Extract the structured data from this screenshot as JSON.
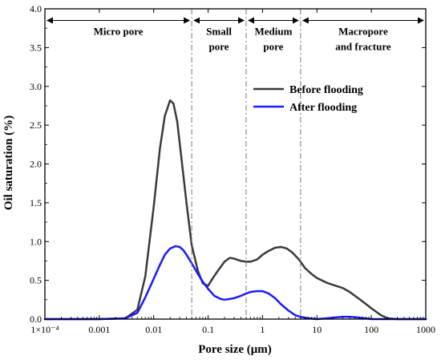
{
  "chart_data": {
    "type": "line",
    "xlabel": "Pore size (μm)",
    "ylabel": "Oil saturation (%)",
    "x_scale": "log",
    "xlim": [
      0.0001,
      1000
    ],
    "ylim": [
      0,
      4.0
    ],
    "x_ticks": [
      {
        "value": 0.0001,
        "label": "1×10⁻⁴"
      },
      {
        "value": 0.001,
        "label": "0.001"
      },
      {
        "value": 0.01,
        "label": "0.01"
      },
      {
        "value": 0.1,
        "label": "0.1"
      },
      {
        "value": 1,
        "label": "1"
      },
      {
        "value": 10,
        "label": "10"
      },
      {
        "value": 100,
        "label": "100"
      },
      {
        "value": 1000,
        "label": "1000"
      }
    ],
    "y_ticks": [
      {
        "value": 0.0,
        "label": "0.0"
      },
      {
        "value": 0.5,
        "label": "0.5"
      },
      {
        "value": 1.0,
        "label": "1.0"
      },
      {
        "value": 1.5,
        "label": "1.5"
      },
      {
        "value": 2.0,
        "label": "2.0"
      },
      {
        "value": 2.5,
        "label": "2.5"
      },
      {
        "value": 3.0,
        "label": "3.0"
      },
      {
        "value": 3.5,
        "label": "3.5"
      },
      {
        "value": 4.0,
        "label": "4.0"
      }
    ],
    "grid": false,
    "legend_position": "upper-right",
    "region_boundaries": [
      0.05,
      0.5,
      5
    ],
    "region_arrow_y": 3.85,
    "regions": [
      {
        "lines": [
          "Micro pore"
        ],
        "x_from": 0.0001,
        "x_to": 0.05
      },
      {
        "lines": [
          "Small",
          "pore"
        ],
        "x_from": 0.05,
        "x_to": 0.5
      },
      {
        "lines": [
          "Medium",
          "pore"
        ],
        "x_from": 0.5,
        "x_to": 5
      },
      {
        "lines": [
          "Macropore",
          "and fracture"
        ],
        "x_from": 5,
        "x_to": 1000
      }
    ],
    "series": [
      {
        "name": "Before flooding",
        "color": "#3a3a3a",
        "x": [
          0.0001,
          0.001,
          0.003,
          0.005,
          0.007,
          0.01,
          0.013,
          0.016,
          0.02,
          0.023,
          0.027,
          0.032,
          0.04,
          0.05,
          0.065,
          0.08,
          0.1,
          0.12,
          0.15,
          0.2,
          0.25,
          0.3,
          0.4,
          0.5,
          0.6,
          0.8,
          1.0,
          1.3,
          1.7,
          2.2,
          2.8,
          3.5,
          4.5,
          5,
          6,
          8,
          10,
          15,
          20,
          30,
          40,
          60,
          100,
          150,
          200,
          300,
          500,
          1000
        ],
        "y": [
          0,
          0,
          0.01,
          0.12,
          0.55,
          1.45,
          2.2,
          2.62,
          2.82,
          2.78,
          2.55,
          2.1,
          1.5,
          0.95,
          0.62,
          0.46,
          0.43,
          0.52,
          0.62,
          0.74,
          0.79,
          0.78,
          0.75,
          0.74,
          0.74,
          0.77,
          0.83,
          0.88,
          0.92,
          0.93,
          0.91,
          0.86,
          0.78,
          0.74,
          0.66,
          0.58,
          0.53,
          0.47,
          0.44,
          0.4,
          0.35,
          0.26,
          0.14,
          0.05,
          0.01,
          0,
          0,
          0
        ]
      },
      {
        "name": "After flooding",
        "color": "#1a1aff",
        "x": [
          0.0001,
          0.001,
          0.003,
          0.005,
          0.007,
          0.01,
          0.013,
          0.016,
          0.02,
          0.025,
          0.03,
          0.035,
          0.04,
          0.05,
          0.065,
          0.08,
          0.1,
          0.13,
          0.17,
          0.2,
          0.25,
          0.3,
          0.4,
          0.5,
          0.6,
          0.8,
          1.0,
          1.3,
          1.7,
          2.2,
          3,
          4,
          5,
          7,
          10,
          15,
          20,
          30,
          40,
          60,
          100,
          1000
        ],
        "y": [
          0,
          0,
          0.01,
          0.08,
          0.28,
          0.52,
          0.7,
          0.83,
          0.91,
          0.94,
          0.93,
          0.89,
          0.83,
          0.72,
          0.58,
          0.48,
          0.39,
          0.3,
          0.26,
          0.25,
          0.26,
          0.27,
          0.3,
          0.33,
          0.35,
          0.36,
          0.36,
          0.33,
          0.27,
          0.19,
          0.11,
          0.05,
          0.03,
          0.01,
          0,
          0.01,
          0.02,
          0.03,
          0.03,
          0.02,
          0,
          0
        ]
      }
    ]
  }
}
